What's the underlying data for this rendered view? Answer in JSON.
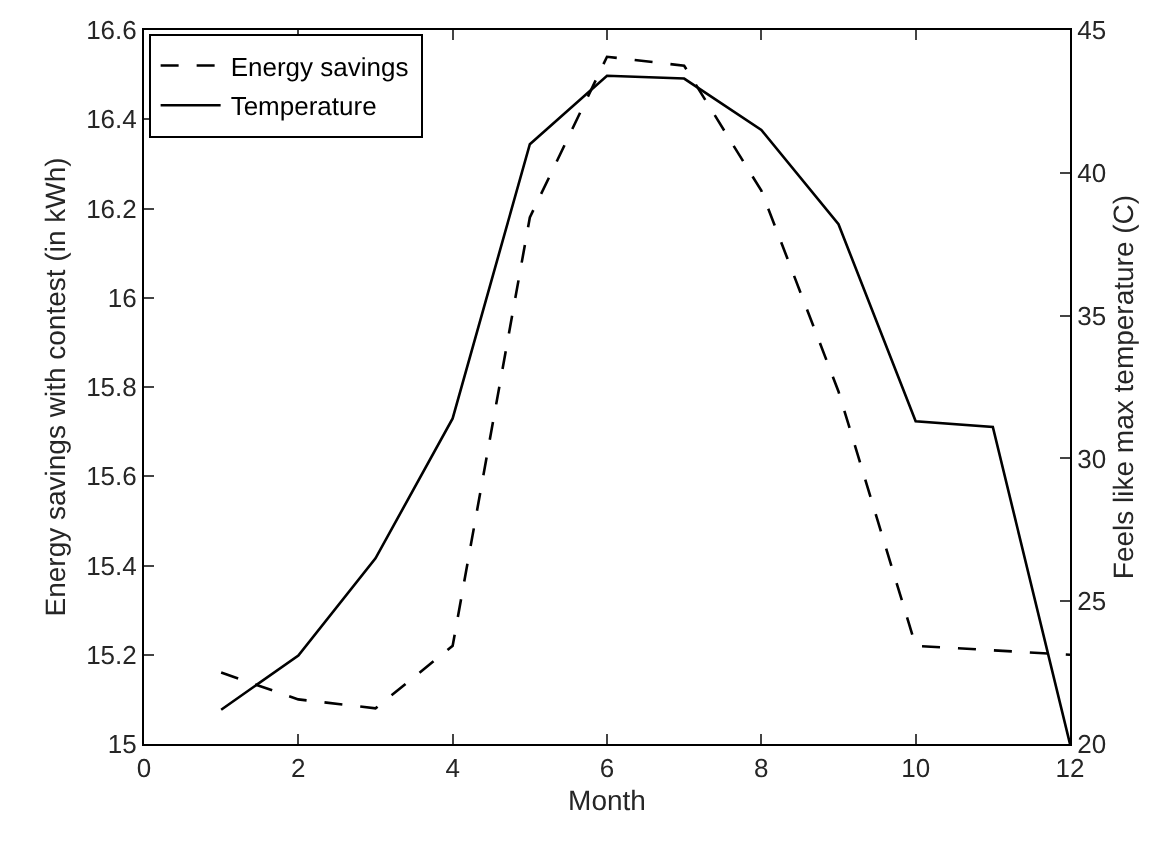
{
  "chart_data": {
    "type": "line",
    "xlabel": "Month",
    "ylabel": "Energy savings with contest (in kWh)",
    "y2label": "Feels like max temperature (C)",
    "x": [
      1,
      2,
      3,
      4,
      5,
      6,
      7,
      8,
      9,
      10,
      11,
      12
    ],
    "series": [
      {
        "name": "Energy savings",
        "color": "#000000",
        "line_style": "dashed",
        "values": [
          15.16,
          15.1,
          15.08,
          15.22,
          16.18,
          16.54,
          16.52,
          16.24,
          15.79,
          15.22,
          15.21,
          15.2
        ]
      },
      {
        "name": "Temperature",
        "color": "#000000",
        "line_style": "solid",
        "axis": "y2",
        "values": [
          21.2,
          23.1,
          26.5,
          31.4,
          41.0,
          43.4,
          43.3,
          41.5,
          38.2,
          31.3,
          31.1,
          20.0
        ]
      }
    ],
    "xlim": [
      0,
      12
    ],
    "xticks": [
      0,
      2,
      4,
      6,
      8,
      10,
      12
    ],
    "ylim": [
      15,
      16.6
    ],
    "yticks": [
      15,
      15.2,
      15.4,
      15.6,
      15.8,
      16,
      16.2,
      16.4,
      16.6
    ],
    "y2lim": [
      20,
      45
    ],
    "y2ticks": [
      20,
      25,
      30,
      35,
      40,
      45
    ],
    "legend": "top left",
    "marker": "none"
  }
}
